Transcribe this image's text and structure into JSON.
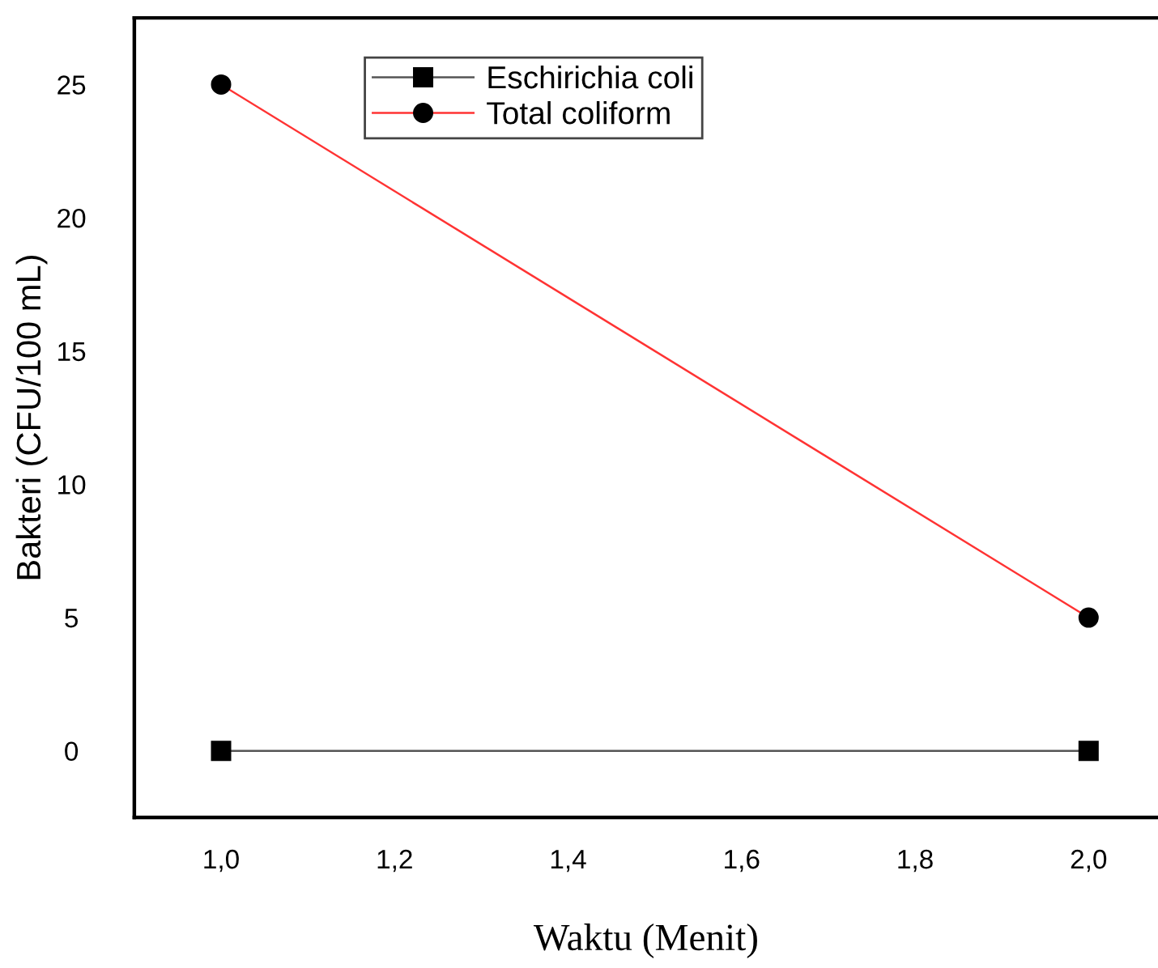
{
  "chart_data": {
    "type": "line",
    "xlabel": "Waktu (Menit)",
    "ylabel": "Bakteri (CFU/100 mL)",
    "x": [
      1.0,
      2.0
    ],
    "series": [
      {
        "name": "Eschirichia coli",
        "color": "#555555",
        "marker": "square",
        "values": [
          0,
          0
        ]
      },
      {
        "name": "Total coliform",
        "color": "#ff3333",
        "marker": "circle",
        "values": [
          25,
          5
        ]
      }
    ],
    "xlim": [
      0.9,
      2.08
    ],
    "xticks": [
      {
        "value": 1.0,
        "label": "1,0"
      },
      {
        "value": 1.2,
        "label": "1,2"
      },
      {
        "value": 1.4,
        "label": "1,4"
      },
      {
        "value": 1.6,
        "label": "1,6"
      },
      {
        "value": 1.8,
        "label": "1,8"
      },
      {
        "value": 2.0,
        "label": "2,0"
      }
    ],
    "ylim": [
      -2.5,
      27.5
    ],
    "yticks": [
      0,
      5,
      10,
      15,
      20,
      25
    ],
    "grid": false,
    "legend": "top"
  }
}
